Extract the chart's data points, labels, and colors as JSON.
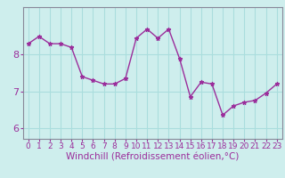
{
  "x": [
    0,
    1,
    2,
    3,
    4,
    5,
    6,
    7,
    8,
    9,
    10,
    11,
    12,
    13,
    14,
    15,
    16,
    17,
    18,
    19,
    20,
    21,
    22,
    23
  ],
  "y": [
    8.3,
    8.5,
    8.3,
    8.3,
    8.2,
    7.4,
    7.3,
    7.2,
    7.2,
    7.35,
    8.45,
    8.7,
    8.45,
    8.7,
    7.9,
    6.85,
    7.25,
    7.2,
    6.35,
    6.6,
    6.7,
    6.75,
    6.95,
    7.2
  ],
  "line_color": "#9b2d9b",
  "marker": "*",
  "marker_size": 3.5,
  "bg_color": "#ceeeed",
  "grid_color": "#aadddd",
  "xlabel": "Windchill (Refroidissement éolien,°C)",
  "xlabel_fontsize": 7.5,
  "tick_fontsize": 6.5,
  "ytick_fontsize": 8,
  "ylim": [
    5.7,
    9.3
  ],
  "xlim": [
    -0.5,
    23.5
  ],
  "yticks": [
    6,
    7,
    8
  ],
  "xticks": [
    0,
    1,
    2,
    3,
    4,
    5,
    6,
    7,
    8,
    9,
    10,
    11,
    12,
    13,
    14,
    15,
    16,
    17,
    18,
    19,
    20,
    21,
    22,
    23
  ],
  "spine_color": "#888899",
  "linewidth": 1.0
}
